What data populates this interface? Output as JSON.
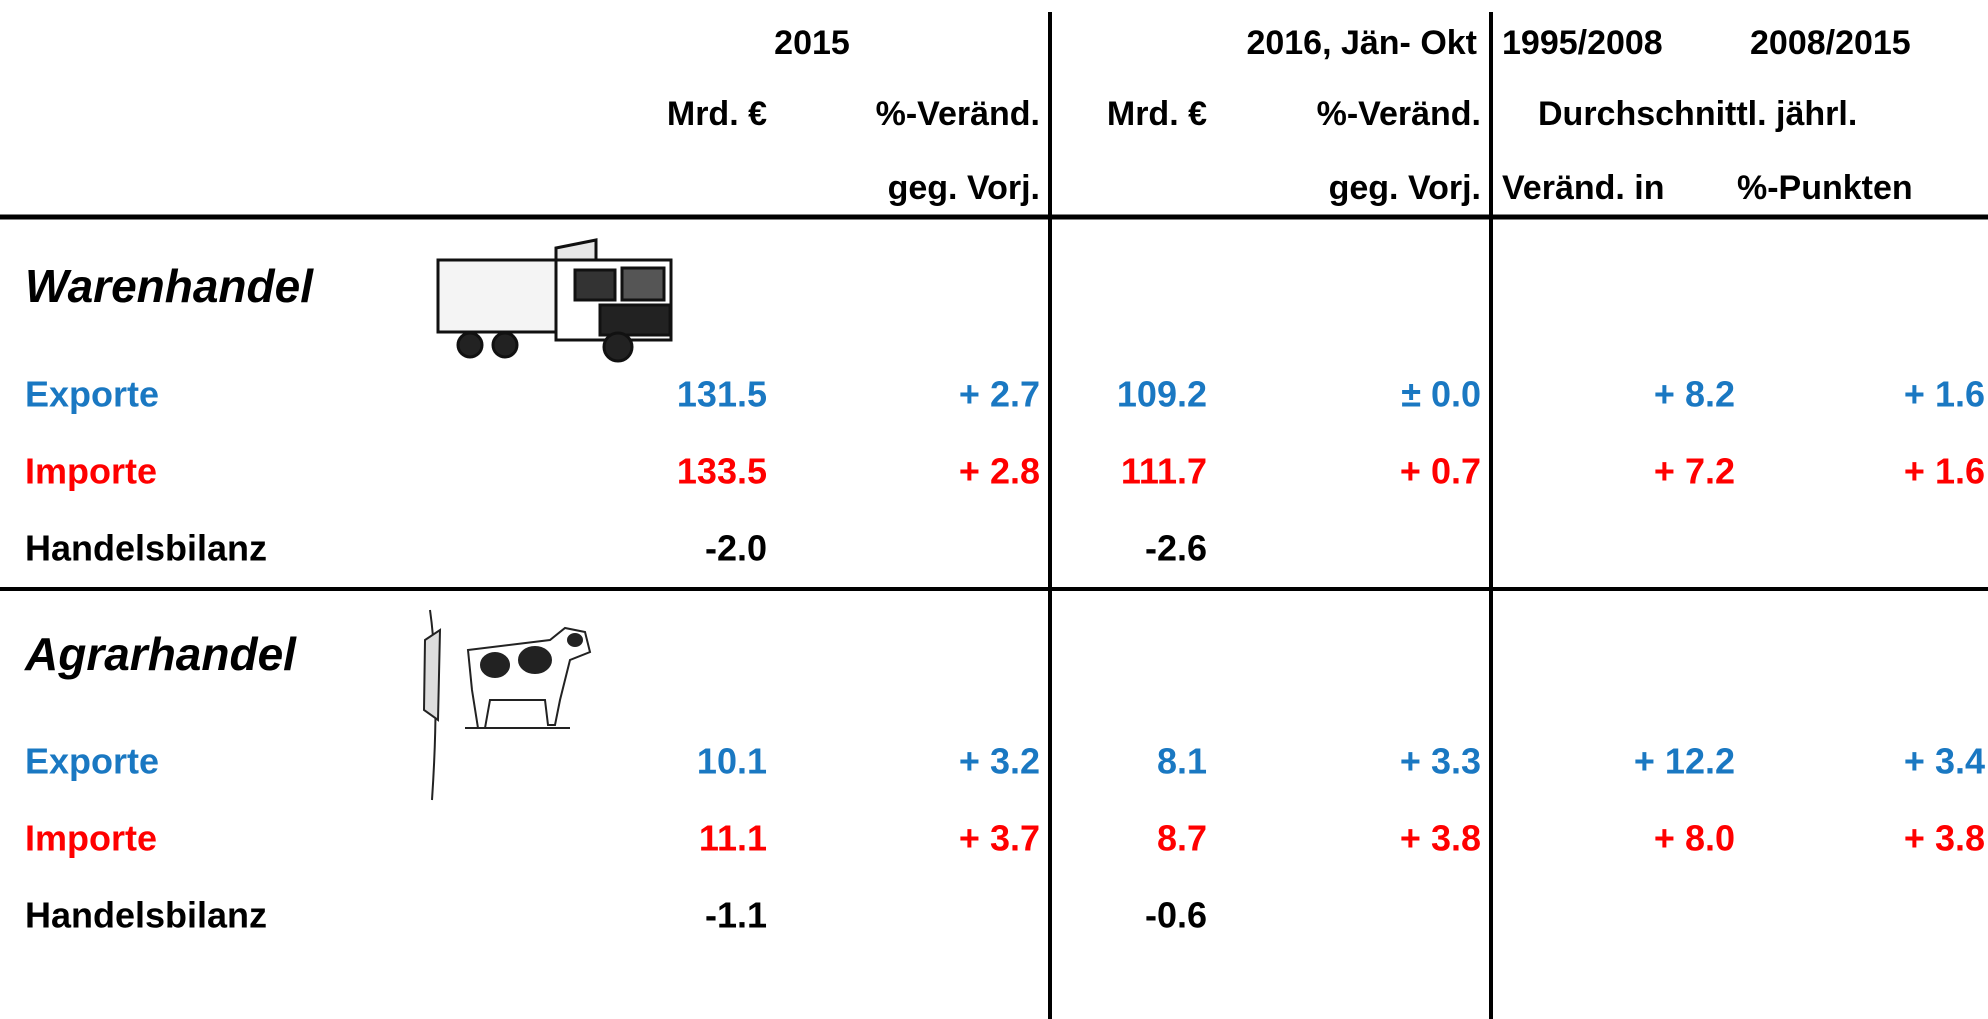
{
  "header": {
    "row1": [
      "2015",
      "2016, Jän- Okt",
      "1995/2008",
      "2008/2015"
    ],
    "row2": [
      "Mrd. €",
      "%-Veränd.",
      "Mrd. €",
      "%-Veränd.",
      "Durchschnittl. jährl."
    ],
    "row3": [
      "geg. Vorj.",
      "geg. Vorj.",
      "Veränd. in",
      "%-Punkten"
    ]
  },
  "sections": [
    {
      "title": "Warenhandel",
      "rows": [
        {
          "label": "Exporte",
          "kind": "export",
          "cells": [
            "131.5",
            "+ 2.7",
            "109.2",
            "± 0.0",
            "+ 8.2",
            "+ 1.6"
          ]
        },
        {
          "label": "Importe",
          "kind": "import",
          "cells": [
            "133.5",
            "+ 2.8",
            "111.7",
            "+ 0.7",
            "+ 7.2",
            "+ 1.6"
          ]
        },
        {
          "label": "Handelsbilanz",
          "kind": "balance",
          "cells": [
            "-2.0",
            null,
            "-2.6"
          ]
        }
      ]
    },
    {
      "title": "Agrarhandel",
      "rows": [
        {
          "label": "Exporte",
          "kind": "export",
          "cells": [
            "10.1",
            "+ 3.2",
            "8.1",
            "+ 3.3",
            "+ 12.2",
            "+ 3.4"
          ]
        },
        {
          "label": "Importe",
          "kind": "import",
          "cells": [
            "11.1",
            "+ 3.7",
            "8.7",
            "+ 3.8",
            "+ 8.0",
            "+ 3.8"
          ]
        },
        {
          "label": "Handelsbilanz",
          "kind": "balance",
          "cells": [
            "-1.1",
            null,
            "-0.6"
          ]
        }
      ]
    }
  ]
}
